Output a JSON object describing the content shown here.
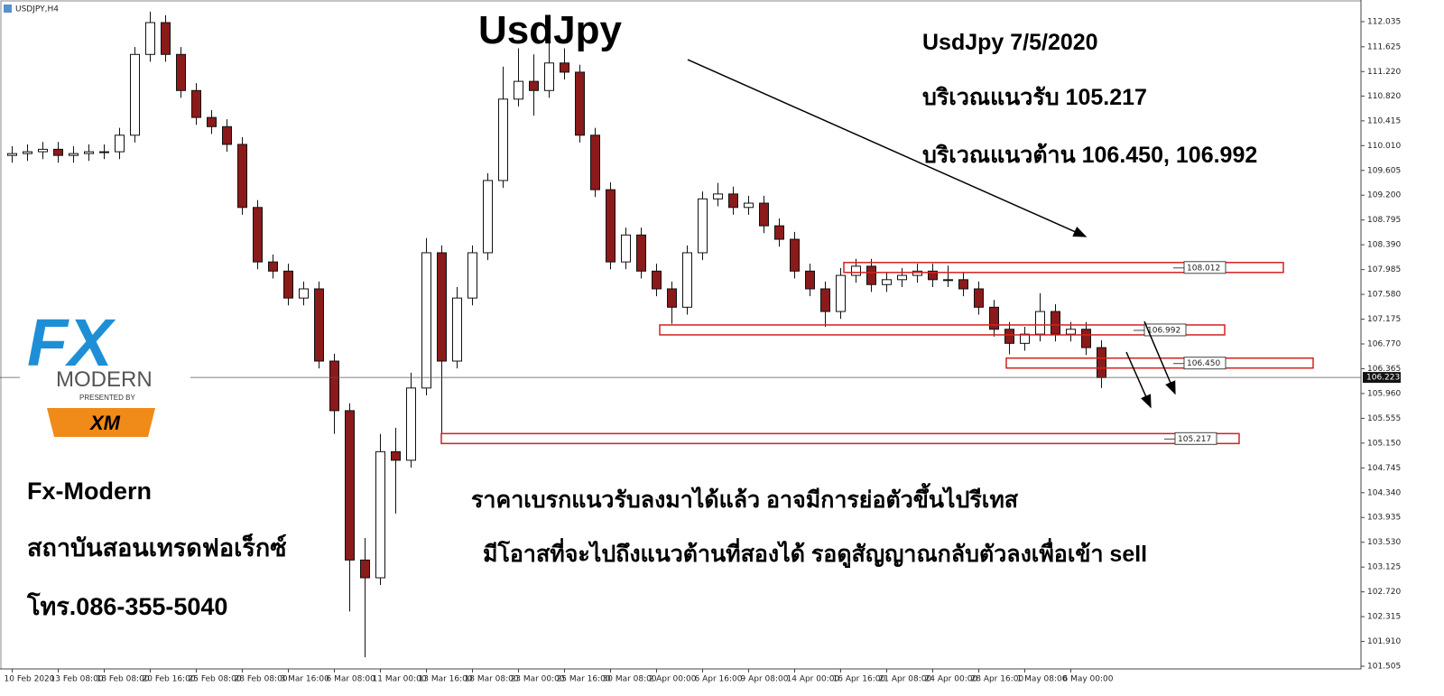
{
  "symbol": "USDJPY,H4",
  "chart_data": {
    "type": "candlestick",
    "title": "UsdJpy",
    "categories": [
      "10 Feb 2020",
      null,
      null,
      "13 Feb 08:00",
      null,
      null,
      "18 Feb 08:00",
      null,
      null,
      "20 Feb 16:00",
      null,
      null,
      "25 Feb 08:00",
      null,
      null,
      "28 Feb 08:00",
      null,
      null,
      "3 Mar 16:00",
      null,
      null,
      "6 Mar 08:00",
      null,
      null,
      "11 Mar 00:00",
      null,
      null,
      "13 Mar 16:00",
      null,
      null,
      "18 Mar 08:00",
      null,
      null,
      "23 Mar 00:00",
      null,
      null,
      "25 Mar 16:00",
      null,
      null,
      "30 Mar 08:00",
      null,
      null,
      "2 Apr 00:00",
      null,
      null,
      "6 Apr 16:00",
      null,
      null,
      "9 Apr 08:00",
      null,
      null,
      "14 Apr 00:00",
      null,
      null,
      "16 Apr 16:00",
      null,
      null,
      "21 Apr 08:00",
      null,
      null,
      "24 Apr 00:00",
      null,
      null,
      "28 Apr 16:00",
      null,
      null,
      "1 May 08:00",
      null,
      null,
      "6 May 00:00",
      null,
      null
    ],
    "open": [
      109.85,
      109.88,
      109.91,
      109.95,
      109.85,
      109.88,
      109.91,
      109.91,
      110.18,
      111.5,
      112.02,
      111.5,
      110.91,
      110.47,
      110.32,
      110.03,
      109.0,
      108.11,
      107.96,
      107.52,
      107.67,
      106.49,
      105.68,
      103.24,
      102.95,
      105.01,
      104.87,
      106.05,
      108.26,
      106.49,
      107.52,
      108.26,
      109.44,
      110.77,
      111.06,
      110.91,
      111.36,
      111.21,
      110.18,
      109.29,
      108.11,
      108.55,
      107.96,
      107.67,
      107.37,
      108.26,
      109.14,
      109.22,
      109.0,
      109.07,
      108.7,
      108.48,
      107.96,
      107.67,
      107.3,
      107.89,
      108.04,
      107.74,
      107.82,
      107.89,
      107.96,
      107.82,
      107.82,
      107.67,
      107.37,
      107.01,
      106.78,
      106.93,
      107.3,
      106.93,
      107.01,
      106.71
    ],
    "high": [
      110.0,
      110.03,
      110.07,
      110.07,
      110.0,
      110.03,
      110.03,
      110.3,
      111.62,
      112.2,
      112.14,
      111.62,
      111.03,
      110.59,
      110.44,
      110.15,
      109.12,
      108.23,
      108.08,
      107.79,
      107.79,
      106.61,
      105.8,
      103.6,
      105.3,
      105.4,
      106.3,
      108.5,
      108.38,
      107.7,
      108.38,
      109.56,
      111.3,
      111.6,
      111.5,
      111.7,
      111.6,
      111.33,
      110.3,
      109.41,
      108.67,
      108.67,
      108.08,
      107.79,
      108.38,
      109.26,
      109.4,
      109.34,
      109.19,
      109.19,
      108.82,
      108.6,
      108.08,
      107.79,
      108.01,
      108.16,
      108.16,
      107.94,
      108.01,
      108.08,
      108.08,
      108.05,
      107.94,
      107.79,
      107.49,
      107.13,
      107.05,
      107.6,
      107.42,
      107.13,
      107.13,
      106.83
    ],
    "low": [
      109.73,
      109.76,
      109.79,
      109.73,
      109.73,
      109.76,
      109.79,
      109.79,
      110.06,
      111.38,
      111.38,
      110.79,
      110.35,
      110.2,
      109.91,
      108.88,
      107.99,
      107.84,
      107.4,
      107.4,
      106.37,
      105.3,
      102.4,
      101.65,
      102.83,
      104.0,
      104.75,
      105.93,
      105.3,
      106.37,
      107.4,
      108.14,
      109.32,
      110.65,
      110.5,
      110.79,
      111.09,
      110.06,
      109.17,
      107.99,
      107.99,
      107.84,
      107.55,
      107.1,
      107.25,
      108.14,
      109.02,
      108.88,
      108.88,
      108.58,
      108.36,
      107.84,
      107.55,
      107.05,
      107.18,
      107.77,
      107.62,
      107.62,
      107.7,
      107.77,
      107.7,
      107.7,
      107.55,
      107.25,
      106.89,
      106.6,
      106.66,
      106.81,
      106.81,
      106.81,
      106.59,
      106.05
    ],
    "close": [
      109.88,
      109.91,
      109.95,
      109.85,
      109.88,
      109.91,
      109.91,
      110.18,
      111.5,
      112.02,
      111.5,
      110.91,
      110.47,
      110.32,
      110.03,
      109.0,
      108.11,
      107.96,
      107.52,
      107.67,
      106.49,
      105.68,
      103.24,
      102.95,
      105.01,
      104.87,
      106.05,
      108.26,
      106.49,
      107.52,
      108.26,
      109.44,
      110.77,
      111.06,
      110.91,
      111.36,
      111.21,
      110.18,
      109.29,
      108.11,
      108.55,
      107.96,
      107.67,
      107.37,
      108.26,
      109.14,
      109.22,
      109.0,
      109.07,
      108.7,
      108.48,
      107.96,
      107.67,
      107.3,
      107.89,
      108.04,
      107.74,
      107.82,
      107.89,
      107.96,
      107.82,
      107.82,
      107.67,
      107.37,
      107.01,
      106.78,
      106.93,
      107.3,
      106.93,
      107.01,
      106.71,
      106.22
    ],
    "up_color": "#ffffff",
    "down_color": "#8b1a1a",
    "outline_color": "#111111",
    "ylim": [
      101.402,
      112.389
    ],
    "yticks": [
      112.035,
      111.625,
      {
        "value": 111.22,
        "label": "111.220"
      },
      {
        "value": 110.82,
        "label": "110.820"
      },
      110.415,
      {
        "value": 110.01,
        "label": "110.010"
      },
      109.605,
      {
        "value": 109.2,
        "label": "109.200"
      },
      108.795,
      {
        "value": 108.39,
        "label": "108.390"
      },
      107.985,
      {
        "value": 107.58,
        "label": "107.580"
      },
      107.175,
      {
        "value": 106.77,
        "label": "106.770"
      },
      106.365,
      {
        "value": 105.96,
        "label": "105.960"
      },
      105.555,
      {
        "value": 105.15,
        "label": "105.150"
      },
      104.745,
      {
        "value": 104.34,
        "label": "104.340"
      },
      103.935,
      {
        "value": 103.53,
        "label": "103.530"
      },
      103.125,
      {
        "value": 102.72,
        "label": "102.720"
      },
      102.315,
      {
        "value": 101.91,
        "label": "101.910"
      },
      101.505
    ],
    "current_price": 106.223,
    "levels": [
      108.012,
      106.992,
      {
        "value": 106.45,
        "label": "106.450"
      },
      105.217
    ],
    "level_color": "#d42020",
    "grid": false
  },
  "annotations": {
    "heading": "UsdJpy  7/5/2020",
    "support": "บริเวณแนวรับ 105.217",
    "resistance": "บริเวณแนวต้าน 106.450, 106.992",
    "comment_1": "ราคาเบรกแนวรับลงมาได้แล้ว อาจมีการย่อตัวขึ้นไปรีเทส",
    "comment_2": "มีโอาสที่จะไปถึงแนวต้านที่สองได้  รอดูสัญญาณกลับตัวลงเพื่อเข้า sell"
  },
  "contact": {
    "brand": "Fx-Modern",
    "school": "สถาบันสอนเทรดฟอเร็กซ์",
    "phone": "โทร.086-355-5040"
  },
  "logo": {
    "mark": "FX",
    "name": "MODERN",
    "presented": "PRESENTED BY",
    "sponsor": "XM"
  }
}
